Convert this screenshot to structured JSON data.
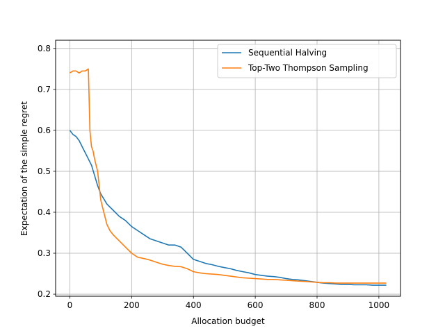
{
  "chart_data": {
    "type": "line",
    "xlabel": "Allocation budget",
    "ylabel": "Expectation of the simple regret",
    "xlim": [
      -46,
      1070
    ],
    "ylim": [
      0.195,
      0.82
    ],
    "xticks": [
      0,
      200,
      400,
      600,
      800,
      1000
    ],
    "yticks": [
      0.2,
      0.3,
      0.4,
      0.5,
      0.6,
      0.7,
      0.8
    ],
    "xtick_labels": [
      "0",
      "200",
      "400",
      "600",
      "800",
      "1000"
    ],
    "ytick_labels": [
      "0.2",
      "0.3",
      "0.4",
      "0.5",
      "0.6",
      "0.7",
      "0.8"
    ],
    "grid": true,
    "legend_position": "top-right",
    "series": [
      {
        "name": "Sequential Halving",
        "color": "#1f77b4",
        "x": [
          0,
          10,
          20,
          30,
          40,
          50,
          60,
          70,
          80,
          90,
          100,
          120,
          140,
          160,
          180,
          200,
          220,
          240,
          260,
          280,
          300,
          320,
          340,
          360,
          380,
          400,
          420,
          440,
          460,
          480,
          500,
          520,
          540,
          560,
          580,
          600,
          620,
          640,
          660,
          680,
          700,
          720,
          740,
          760,
          780,
          800,
          820,
          840,
          860,
          880,
          900,
          920,
          940,
          960,
          980,
          1000,
          1024
        ],
        "y": [
          0.6,
          0.59,
          0.585,
          0.575,
          0.56,
          0.545,
          0.53,
          0.515,
          0.49,
          0.465,
          0.445,
          0.42,
          0.405,
          0.39,
          0.38,
          0.365,
          0.355,
          0.345,
          0.335,
          0.33,
          0.325,
          0.32,
          0.32,
          0.315,
          0.3,
          0.285,
          0.28,
          0.275,
          0.272,
          0.268,
          0.265,
          0.262,
          0.258,
          0.255,
          0.252,
          0.248,
          0.246,
          0.244,
          0.243,
          0.241,
          0.238,
          0.236,
          0.235,
          0.233,
          0.231,
          0.229,
          0.227,
          0.226,
          0.225,
          0.224,
          0.224,
          0.223,
          0.223,
          0.223,
          0.222,
          0.222,
          0.222
        ]
      },
      {
        "name": "Top-Two Thompson Sampling",
        "color": "#ff7f0e",
        "x": [
          0,
          10,
          20,
          30,
          40,
          50,
          60,
          65,
          70,
          75,
          80,
          90,
          100,
          110,
          120,
          130,
          140,
          160,
          180,
          200,
          220,
          240,
          260,
          280,
          300,
          320,
          340,
          360,
          380,
          400,
          420,
          440,
          460,
          480,
          500,
          520,
          540,
          560,
          580,
          600,
          620,
          640,
          660,
          680,
          700,
          720,
          740,
          760,
          780,
          800,
          820,
          840,
          860,
          880,
          900,
          920,
          940,
          960,
          980,
          1000,
          1024
        ],
        "y": [
          0.74,
          0.745,
          0.745,
          0.74,
          0.745,
          0.745,
          0.75,
          0.6,
          0.56,
          0.55,
          0.53,
          0.5,
          0.43,
          0.4,
          0.37,
          0.355,
          0.345,
          0.33,
          0.315,
          0.3,
          0.29,
          0.287,
          0.283,
          0.278,
          0.273,
          0.27,
          0.268,
          0.267,
          0.262,
          0.255,
          0.252,
          0.25,
          0.249,
          0.248,
          0.246,
          0.244,
          0.242,
          0.24,
          0.239,
          0.238,
          0.237,
          0.236,
          0.236,
          0.235,
          0.234,
          0.233,
          0.232,
          0.231,
          0.23,
          0.229,
          0.228,
          0.228,
          0.227,
          0.227,
          0.227,
          0.227,
          0.227,
          0.227,
          0.227,
          0.227,
          0.227
        ]
      }
    ]
  }
}
